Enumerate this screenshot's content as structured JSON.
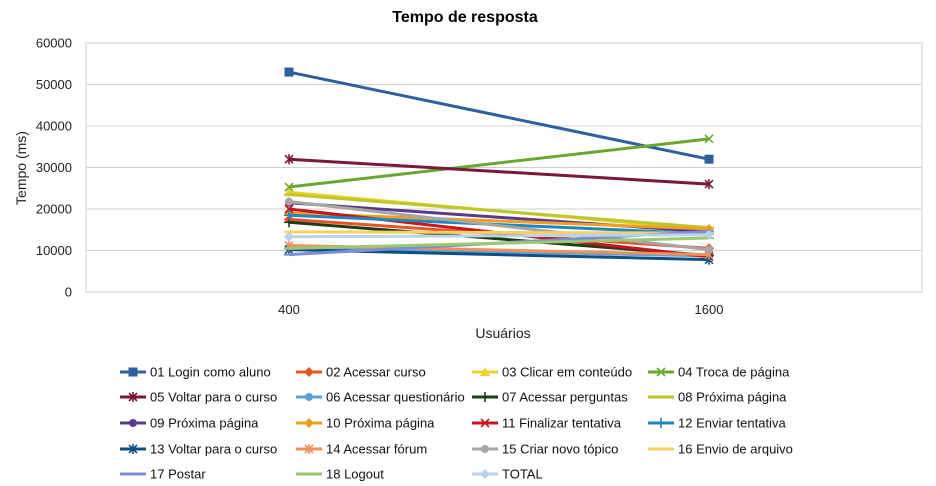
{
  "chart_data": {
    "type": "line",
    "title": "Tempo de resposta",
    "xlabel": "Usuários",
    "ylabel": "Tempo (ms)",
    "categories": [
      "400",
      "1600"
    ],
    "ylim": [
      0,
      60000
    ],
    "yticks": [
      0,
      10000,
      20000,
      30000,
      40000,
      50000,
      60000
    ],
    "yticklabels": [
      "0",
      "10000",
      "20000",
      "30000",
      "40000",
      "50000",
      "60000"
    ],
    "grid": true,
    "legend_position": "bottom",
    "series": [
      {
        "name": "01 Login como aluno",
        "values": [
          53000,
          32000
        ],
        "color": "#2e5f9e",
        "marker": "square"
      },
      {
        "name": "02 Acessar curso",
        "values": [
          17500,
          10500
        ],
        "color": "#e8542a",
        "marker": "diamond"
      },
      {
        "name": "03 Clicar em conteúdo",
        "values": [
          24000,
          15000
        ],
        "color": "#f0d12a",
        "marker": "triangle"
      },
      {
        "name": "04 Troca de página",
        "values": [
          25300,
          36900
        ],
        "color": "#6aa632",
        "marker": "x"
      },
      {
        "name": "05 Voltar para o curso",
        "values": [
          32000,
          26000
        ],
        "color": "#7b1a35",
        "marker": "star"
      },
      {
        "name": "06 Acessar questionário",
        "values": [
          10700,
          8700
        ],
        "color": "#5aa0d8",
        "marker": "circle"
      },
      {
        "name": "07 Acessar perguntas",
        "values": [
          16800,
          8800
        ],
        "color": "#1e3c18",
        "marker": "plus"
      },
      {
        "name": "08 Próxima página",
        "values": [
          23500,
          15500
        ],
        "color": "#bcc82a",
        "marker": "dash"
      },
      {
        "name": "09 Próxima página",
        "values": [
          21500,
          14500
        ],
        "color": "#5b3a8c",
        "marker": "circle"
      },
      {
        "name": "10 Próxima página",
        "values": [
          19000,
          15200
        ],
        "color": "#f0a020",
        "marker": "diamond"
      },
      {
        "name": "11 Finalizar tentativa",
        "values": [
          20000,
          8500
        ],
        "color": "#c8141e",
        "marker": "x"
      },
      {
        "name": "12 Enviar tentativa",
        "values": [
          18500,
          14000
        ],
        "color": "#1f86c0",
        "marker": "plus"
      },
      {
        "name": "13 Voltar para o curso",
        "values": [
          10200,
          7800
        ],
        "color": "#0d4f86",
        "marker": "star"
      },
      {
        "name": "14 Acessar fórum",
        "values": [
          11200,
          9000
        ],
        "color": "#f0905a",
        "marker": "star"
      },
      {
        "name": "15 Criar novo tópico",
        "values": [
          21800,
          10200
        ],
        "color": "#a6a6a6",
        "marker": "circle"
      },
      {
        "name": "16 Envio de arquivo",
        "values": [
          14500,
          14200
        ],
        "color": "#f8d060",
        "marker": "dash"
      },
      {
        "name": "17 Postar",
        "values": [
          9000,
          14600
        ],
        "color": "#7b8fd0",
        "marker": "dash"
      },
      {
        "name": "18 Logout",
        "values": [
          10500,
          13000
        ],
        "color": "#9cc872",
        "marker": "dash"
      },
      {
        "name": "TOTAL",
        "values": [
          13300,
          13800
        ],
        "color": "#b8d4ec",
        "marker": "diamond"
      }
    ]
  }
}
